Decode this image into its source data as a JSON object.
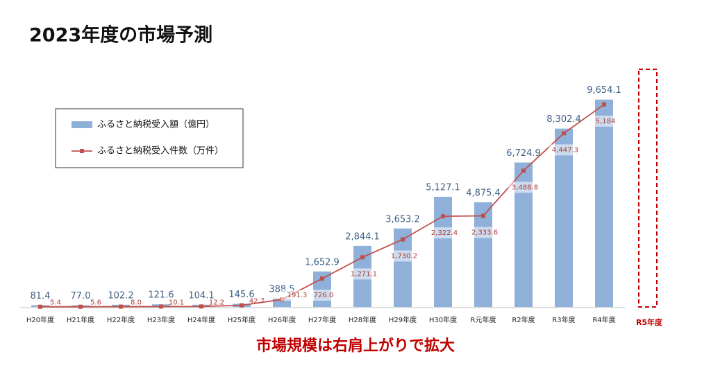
{
  "chart_data": {
    "type": "bar-line",
    "title": "2023年度の市場予測",
    "annotation": "市場規模は右肩上がりで拡大",
    "forecast_label": "R5年度",
    "categories": [
      "H20年度",
      "H21年度",
      "H22年度",
      "H23年度",
      "H24年度",
      "H25年度",
      "H26年度",
      "H27年度",
      "H28年度",
      "H29年度",
      "H30年度",
      "R元年度",
      "R2年度",
      "R3年度",
      "R4年度"
    ],
    "series": [
      {
        "name": "ふるさと納税受入額（億円）",
        "type": "bar",
        "color": "#8fb0d9",
        "values": [
          81.4,
          77.0,
          102.2,
          121.6,
          104.1,
          145.6,
          388.5,
          1652.9,
          2844.1,
          3653.2,
          5127.1,
          4875.4,
          6724.9,
          8302.4,
          9654.1
        ],
        "value_labels": [
          "81.4",
          "77.0",
          "102.2",
          "121.6",
          "104.1",
          "145.6",
          "388.5",
          "1,652.9",
          "2,844.1",
          "3,653.2",
          "5,127.1",
          "4,875.4",
          "6,724.9",
          "8,302.4",
          "9,654.1"
        ]
      },
      {
        "name": "ふるさと納税受入件数（万件）",
        "type": "line",
        "axis": "y2",
        "color": "#c0504d",
        "values": [
          5.4,
          5.6,
          8.0,
          10.1,
          12.2,
          42.7,
          191.3,
          726.0,
          1271.1,
          1730.2,
          2322.4,
          2333.6,
          3488.8,
          4447.3,
          5184
        ],
        "value_labels": [
          "5.4",
          "5.6",
          "8.0",
          "10.1",
          "12.2",
          "42.7",
          "191.3",
          "726.0",
          "1,271.1",
          "1,730.2",
          "2,322.4",
          "2,333.6",
          "3,488.8",
          "4,447.3",
          "5,184"
        ]
      }
    ],
    "ylim": [
      0,
      10000
    ],
    "y2lim": [
      0,
      5500
    ]
  }
}
